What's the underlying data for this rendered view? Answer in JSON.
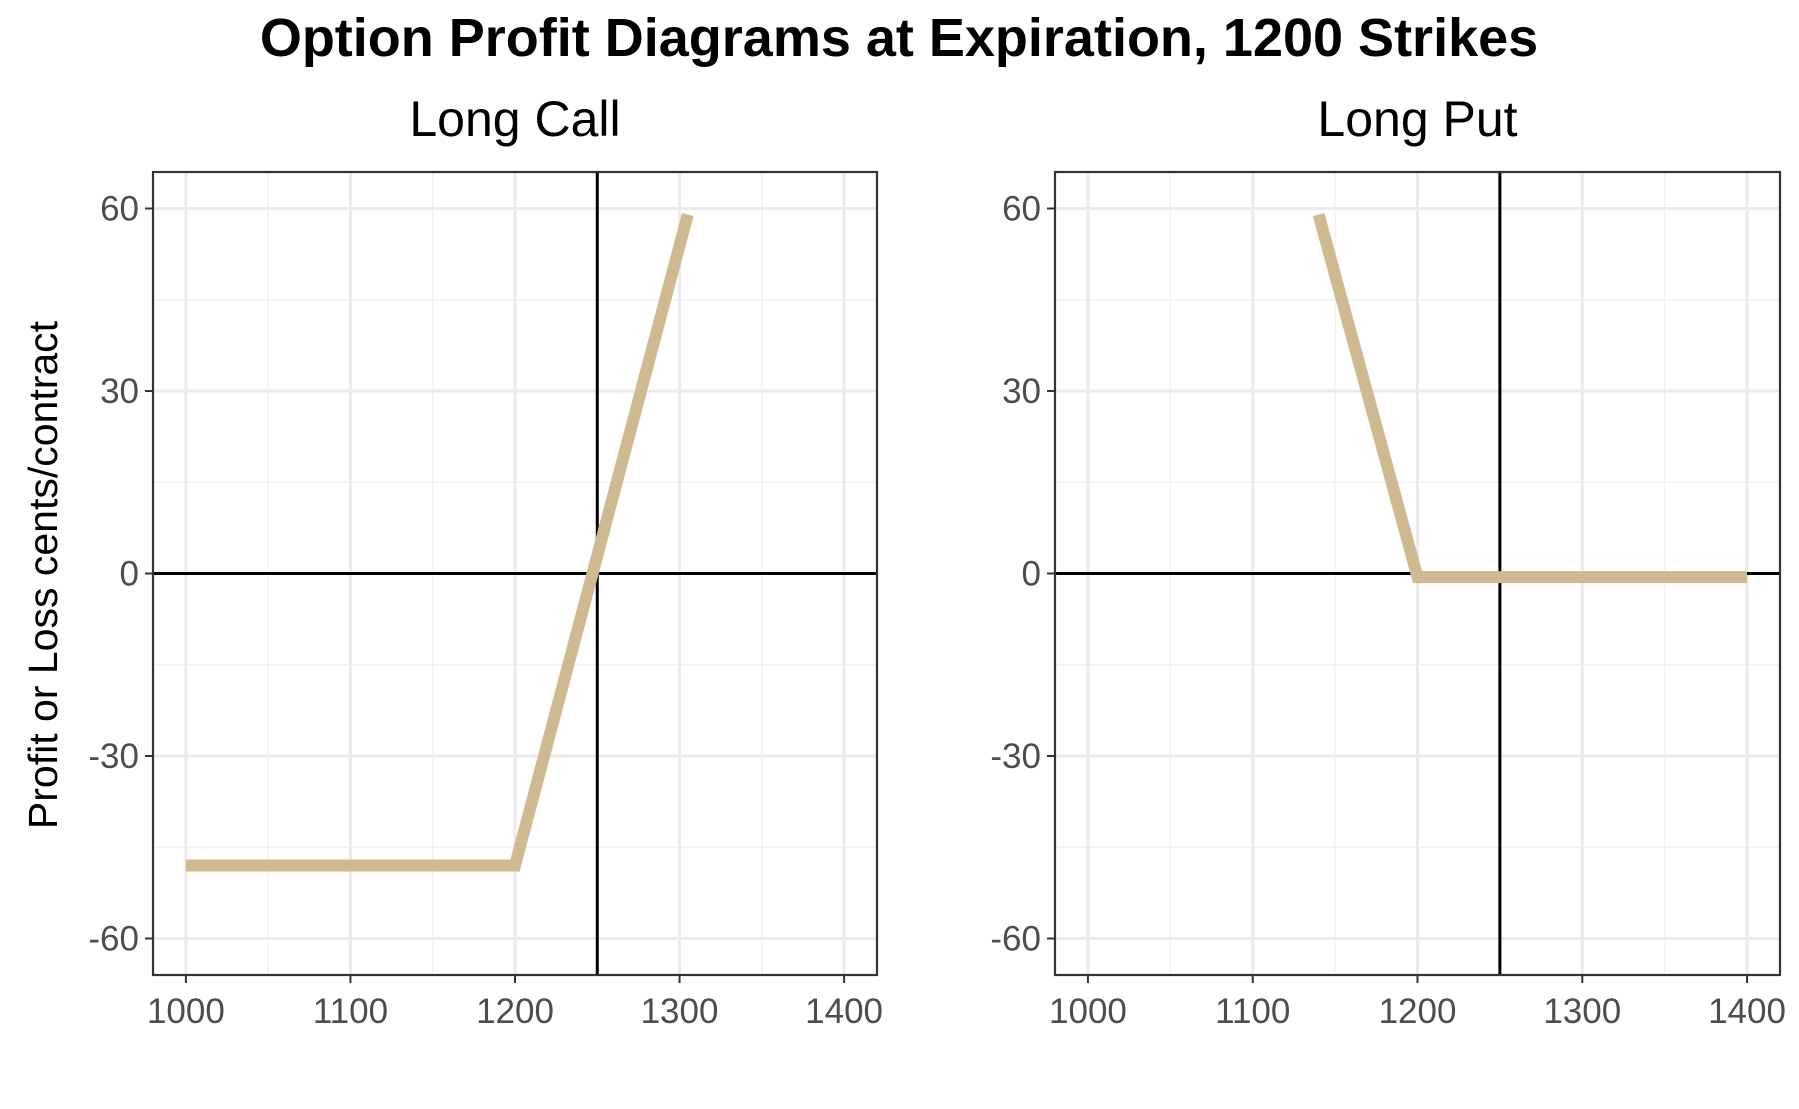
{
  "figure": {
    "title": "Option Profit Diagrams at Expiration, 1200 Strikes",
    "ylabel": "Profit or Loss cents/contract"
  },
  "chart_data": [
    {
      "type": "line",
      "title": "Long Call",
      "xlabel": "",
      "ylabel": "Profit or Loss cents/contract",
      "xlim": [
        980,
        1420
      ],
      "ylim": [
        -66,
        66
      ],
      "xticks": [
        1000,
        1100,
        1200,
        1300,
        1400
      ],
      "yticks": [
        -60,
        -30,
        0,
        30,
        60
      ],
      "x_tick_labels": [
        "1000",
        "1100",
        "1200",
        "1300",
        "1400"
      ],
      "y_tick_labels": [
        "-60",
        "-30",
        "0",
        "30",
        "60"
      ],
      "x": [
        1000,
        1200,
        1305
      ],
      "y": [
        -48,
        -48,
        59
      ],
      "hline": 0,
      "vline": 1250,
      "line_color": "#cfb991",
      "grid": true
    },
    {
      "type": "line",
      "title": "Long Put",
      "xlabel": "",
      "ylabel": "",
      "xlim": [
        980,
        1420
      ],
      "ylim": [
        -66,
        66
      ],
      "xticks": [
        1000,
        1100,
        1200,
        1300,
        1400
      ],
      "yticks": [
        -60,
        -30,
        0,
        30,
        60
      ],
      "x_tick_labels": [
        "1000",
        "1100",
        "1200",
        "1300",
        "1400"
      ],
      "y_tick_labels": [
        "-60",
        "-30",
        "0",
        "30",
        "60"
      ],
      "x": [
        1140,
        1200,
        1400
      ],
      "y": [
        59,
        -0.6,
        -0.6
      ],
      "hline": 0,
      "vline": 1250,
      "line_color": "#cfb991",
      "grid": true
    }
  ]
}
